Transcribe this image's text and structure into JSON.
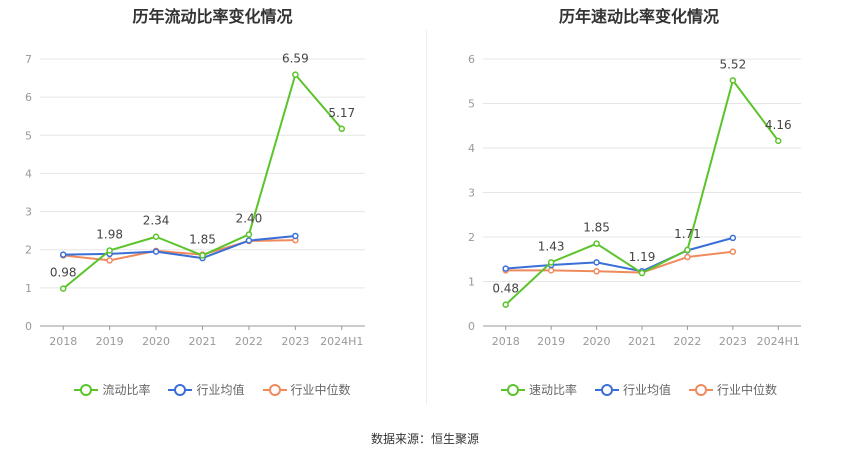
{
  "source": "数据来源：恒生聚源",
  "colors": {
    "main": "#5cc42b",
    "avg": "#3a6fd8",
    "median": "#f08a5d"
  },
  "chart_data": [
    {
      "type": "line",
      "title": "历年流动比率变化情况",
      "categories": [
        "2018",
        "2019",
        "2020",
        "2021",
        "2022",
        "2023",
        "2024H1"
      ],
      "ylim": [
        0,
        7
      ],
      "yticks": [
        0,
        1,
        2,
        3,
        4,
        5,
        6,
        7
      ],
      "grid": true,
      "legend_position": "bottom",
      "series": [
        {
          "name": "流动比率",
          "color": "#5cc42b",
          "labels": true,
          "values": [
            0.98,
            1.98,
            2.34,
            1.85,
            2.4,
            6.59,
            5.17
          ]
        },
        {
          "name": "行业均值",
          "color": "#3a6fd8",
          "labels": false,
          "values": [
            1.87,
            1.89,
            1.95,
            1.78,
            2.24,
            2.36,
            null
          ]
        },
        {
          "name": "行业中位数",
          "color": "#f08a5d",
          "labels": false,
          "values": [
            1.85,
            1.72,
            1.97,
            1.87,
            2.23,
            2.25,
            null
          ]
        }
      ]
    },
    {
      "type": "line",
      "title": "历年速动比率变化情况",
      "categories": [
        "2018",
        "2019",
        "2020",
        "2021",
        "2022",
        "2023",
        "2024H1"
      ],
      "ylim": [
        0,
        6
      ],
      "yticks": [
        0,
        1,
        2,
        3,
        4,
        5,
        6
      ],
      "grid": true,
      "legend_position": "bottom",
      "series": [
        {
          "name": "速动比率",
          "color": "#5cc42b",
          "labels": true,
          "values": [
            0.48,
            1.43,
            1.85,
            1.19,
            1.71,
            5.52,
            4.16
          ]
        },
        {
          "name": "行业均值",
          "color": "#3a6fd8",
          "labels": false,
          "values": [
            1.29,
            1.37,
            1.43,
            1.23,
            1.7,
            1.98,
            null
          ]
        },
        {
          "name": "行业中位数",
          "color": "#f08a5d",
          "labels": false,
          "values": [
            1.25,
            1.25,
            1.23,
            1.2,
            1.55,
            1.67,
            null
          ]
        }
      ]
    }
  ]
}
